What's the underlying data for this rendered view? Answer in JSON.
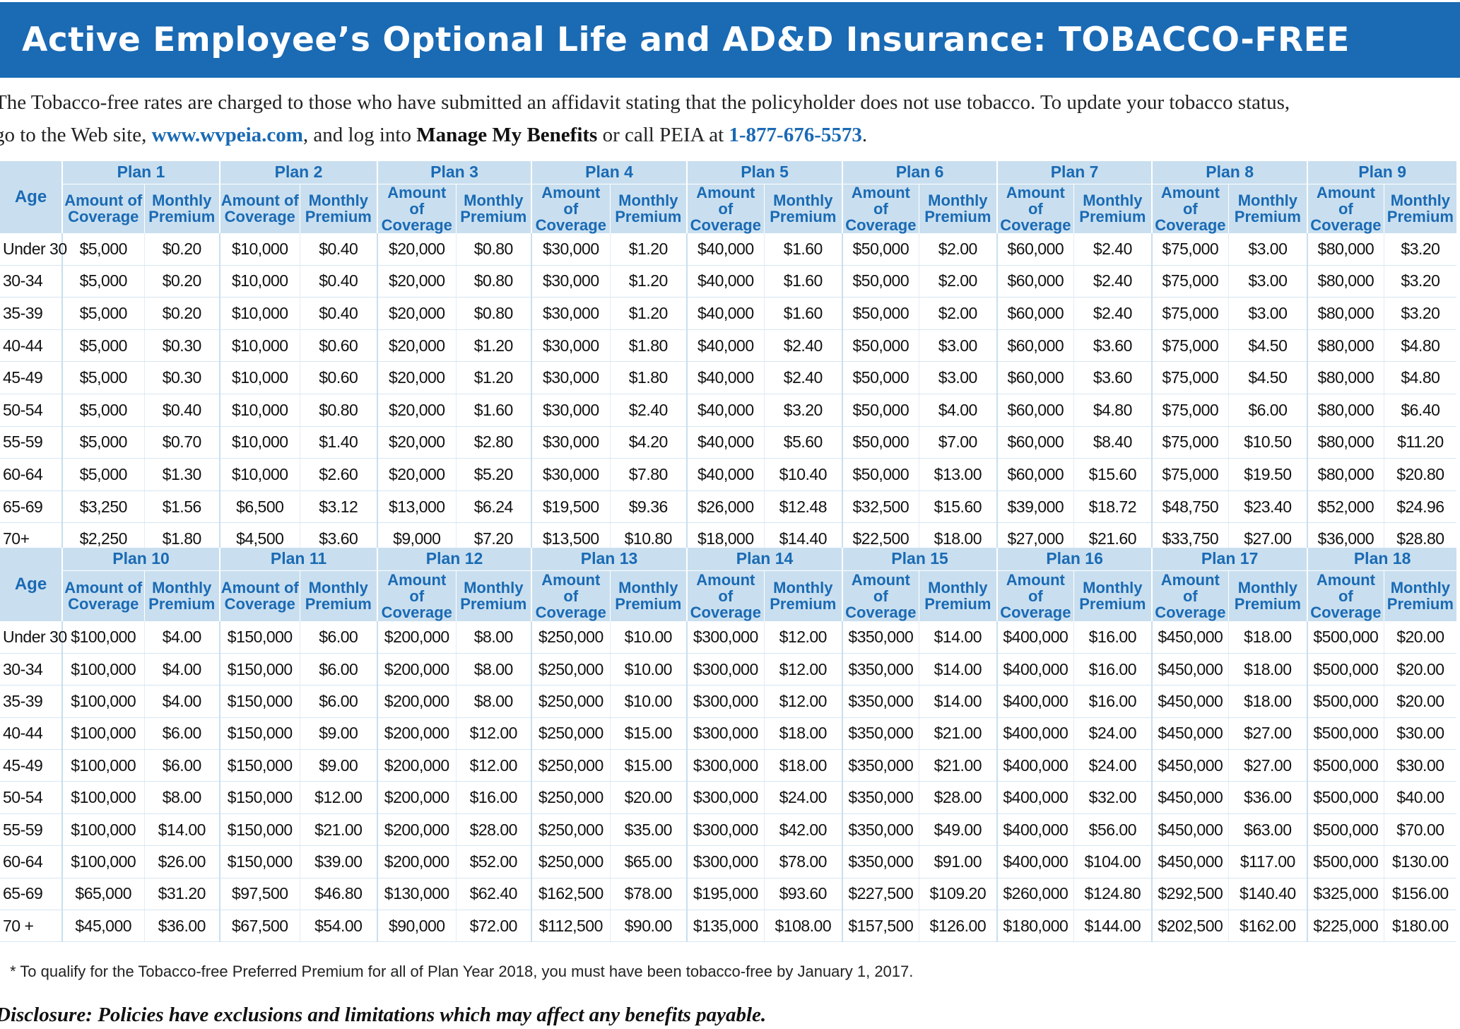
{
  "title": "Active Employee’s Optional Life and AD&D Insurance: TOBACCO-FREE",
  "intro": {
    "line1": "The Tobacco-free rates are charged to those who have submitted an affidavit stating that the policyholder does not use tobacco. To update your tobacco status,",
    "line2_a": "go to the Web site, ",
    "website": "www.wvpeia.com",
    "line2_b": ", and log into ",
    "manage": "Manage My Benefits",
    "line2_c": " or call PEIA at ",
    "phone": "1-877-676-5573",
    "line2_d": "."
  },
  "labels": {
    "age": "Age",
    "amount": "Amount of Coverage",
    "premium": "Monthly Premium"
  },
  "ages": [
    "Under 30",
    "30-34",
    "35-39",
    "40-44",
    "45-49",
    "50-54",
    "55-59",
    "60-64",
    "65-69",
    "70+"
  ],
  "ages2": [
    "Under 30",
    "30-34",
    "35-39",
    "40-44",
    "45-49",
    "50-54",
    "55-59",
    "60-64",
    "65-69",
    "70 +"
  ],
  "plans1": [
    {
      "name": "Plan 1",
      "coverage": [
        "$5,000",
        "$5,000",
        "$5,000",
        "$5,000",
        "$5,000",
        "$5,000",
        "$5,000",
        "$5,000",
        "$3,250",
        "$2,250"
      ],
      "premium": [
        "$0.20",
        "$0.20",
        "$0.20",
        "$0.30",
        "$0.30",
        "$0.40",
        "$0.70",
        "$1.30",
        "$1.56",
        "$1.80"
      ]
    },
    {
      "name": "Plan 2",
      "coverage": [
        "$10,000",
        "$10,000",
        "$10,000",
        "$10,000",
        "$10,000",
        "$10,000",
        "$10,000",
        "$10,000",
        "$6,500",
        "$4,500"
      ],
      "premium": [
        "$0.40",
        "$0.40",
        "$0.40",
        "$0.60",
        "$0.60",
        "$0.80",
        "$1.40",
        "$2.60",
        "$3.12",
        "$3.60"
      ]
    },
    {
      "name": "Plan 3",
      "coverage": [
        "$20,000",
        "$20,000",
        "$20,000",
        "$20,000",
        "$20,000",
        "$20,000",
        "$20,000",
        "$20,000",
        "$13,000",
        "$9,000"
      ],
      "premium": [
        "$0.80",
        "$0.80",
        "$0.80",
        "$1.20",
        "$1.20",
        "$1.60",
        "$2.80",
        "$5.20",
        "$6.24",
        "$7.20"
      ]
    },
    {
      "name": "Plan 4",
      "coverage": [
        "$30,000",
        "$30,000",
        "$30,000",
        "$30,000",
        "$30,000",
        "$30,000",
        "$30,000",
        "$30,000",
        "$19,500",
        "$13,500"
      ],
      "premium": [
        "$1.20",
        "$1.20",
        "$1.20",
        "$1.80",
        "$1.80",
        "$2.40",
        "$4.20",
        "$7.80",
        "$9.36",
        "$10.80"
      ]
    },
    {
      "name": "Plan 5",
      "coverage": [
        "$40,000",
        "$40,000",
        "$40,000",
        "$40,000",
        "$40,000",
        "$40,000",
        "$40,000",
        "$40,000",
        "$26,000",
        "$18,000"
      ],
      "premium": [
        "$1.60",
        "$1.60",
        "$1.60",
        "$2.40",
        "$2.40",
        "$3.20",
        "$5.60",
        "$10.40",
        "$12.48",
        "$14.40"
      ]
    },
    {
      "name": "Plan 6",
      "coverage": [
        "$50,000",
        "$50,000",
        "$50,000",
        "$50,000",
        "$50,000",
        "$50,000",
        "$50,000",
        "$50,000",
        "$32,500",
        "$22,500"
      ],
      "premium": [
        "$2.00",
        "$2.00",
        "$2.00",
        "$3.00",
        "$3.00",
        "$4.00",
        "$7.00",
        "$13.00",
        "$15.60",
        "$18.00"
      ]
    },
    {
      "name": "Plan 7",
      "coverage": [
        "$60,000",
        "$60,000",
        "$60,000",
        "$60,000",
        "$60,000",
        "$60,000",
        "$60,000",
        "$60,000",
        "$39,000",
        "$27,000"
      ],
      "premium": [
        "$2.40",
        "$2.40",
        "$2.40",
        "$3.60",
        "$3.60",
        "$4.80",
        "$8.40",
        "$15.60",
        "$18.72",
        "$21.60"
      ]
    },
    {
      "name": "Plan 8",
      "coverage": [
        "$75,000",
        "$75,000",
        "$75,000",
        "$75,000",
        "$75,000",
        "$75,000",
        "$75,000",
        "$75,000",
        "$48,750",
        "$33,750"
      ],
      "premium": [
        "$3.00",
        "$3.00",
        "$3.00",
        "$4.50",
        "$4.50",
        "$6.00",
        "$10.50",
        "$19.50",
        "$23.40",
        "$27.00"
      ]
    },
    {
      "name": "Plan 9",
      "coverage": [
        "$80,000",
        "$80,000",
        "$80,000",
        "$80,000",
        "$80,000",
        "$80,000",
        "$80,000",
        "$80,000",
        "$52,000",
        "$36,000"
      ],
      "premium": [
        "$3.20",
        "$3.20",
        "$3.20",
        "$4.80",
        "$4.80",
        "$6.40",
        "$11.20",
        "$20.80",
        "$24.96",
        "$28.80"
      ]
    }
  ],
  "plans2": [
    {
      "name": "Plan 10",
      "coverage": [
        "$100,000",
        "$100,000",
        "$100,000",
        "$100,000",
        "$100,000",
        "$100,000",
        "$100,000",
        "$100,000",
        "$65,000",
        "$45,000"
      ],
      "premium": [
        "$4.00",
        "$4.00",
        "$4.00",
        "$6.00",
        "$6.00",
        "$8.00",
        "$14.00",
        "$26.00",
        "$31.20",
        "$36.00"
      ]
    },
    {
      "name": "Plan 11",
      "coverage": [
        "$150,000",
        "$150,000",
        "$150,000",
        "$150,000",
        "$150,000",
        "$150,000",
        "$150,000",
        "$150,000",
        "$97,500",
        "$67,500"
      ],
      "premium": [
        "$6.00",
        "$6.00",
        "$6.00",
        "$9.00",
        "$9.00",
        "$12.00",
        "$21.00",
        "$39.00",
        "$46.80",
        "$54.00"
      ]
    },
    {
      "name": "Plan 12",
      "coverage": [
        "$200,000",
        "$200,000",
        "$200,000",
        "$200,000",
        "$200,000",
        "$200,000",
        "$200,000",
        "$200,000",
        "$130,000",
        "$90,000"
      ],
      "premium": [
        "$8.00",
        "$8.00",
        "$8.00",
        "$12.00",
        "$12.00",
        "$16.00",
        "$28.00",
        "$52.00",
        "$62.40",
        "$72.00"
      ]
    },
    {
      "name": "Plan 13",
      "coverage": [
        "$250,000",
        "$250,000",
        "$250,000",
        "$250,000",
        "$250,000",
        "$250,000",
        "$250,000",
        "$250,000",
        "$162,500",
        "$112,500"
      ],
      "premium": [
        "$10.00",
        "$10.00",
        "$10.00",
        "$15.00",
        "$15.00",
        "$20.00",
        "$35.00",
        "$65.00",
        "$78.00",
        "$90.00"
      ]
    },
    {
      "name": "Plan 14",
      "coverage": [
        "$300,000",
        "$300,000",
        "$300,000",
        "$300,000",
        "$300,000",
        "$300,000",
        "$300,000",
        "$300,000",
        "$195,000",
        "$135,000"
      ],
      "premium": [
        "$12.00",
        "$12.00",
        "$12.00",
        "$18.00",
        "$18.00",
        "$24.00",
        "$42.00",
        "$78.00",
        "$93.60",
        "$108.00"
      ]
    },
    {
      "name": "Plan 15",
      "coverage": [
        "$350,000",
        "$350,000",
        "$350,000",
        "$350,000",
        "$350,000",
        "$350,000",
        "$350,000",
        "$350,000",
        "$227,500",
        "$157,500"
      ],
      "premium": [
        "$14.00",
        "$14.00",
        "$14.00",
        "$21.00",
        "$21.00",
        "$28.00",
        "$49.00",
        "$91.00",
        "$109.20",
        "$126.00"
      ]
    },
    {
      "name": "Plan 16",
      "coverage": [
        "$400,000",
        "$400,000",
        "$400,000",
        "$400,000",
        "$400,000",
        "$400,000",
        "$400,000",
        "$400,000",
        "$260,000",
        "$180,000"
      ],
      "premium": [
        "$16.00",
        "$16.00",
        "$16.00",
        "$24.00",
        "$24.00",
        "$32.00",
        "$56.00",
        "$104.00",
        "$124.80",
        "$144.00"
      ]
    },
    {
      "name": "Plan 17",
      "coverage": [
        "$450,000",
        "$450,000",
        "$450,000",
        "$450,000",
        "$450,000",
        "$450,000",
        "$450,000",
        "$450,000",
        "$292,500",
        "$202,500"
      ],
      "premium": [
        "$18.00",
        "$18.00",
        "$18.00",
        "$27.00",
        "$27.00",
        "$36.00",
        "$63.00",
        "$117.00",
        "$140.40",
        "$162.00"
      ]
    },
    {
      "name": "Plan 18",
      "coverage": [
        "$500,000",
        "$500,000",
        "$500,000",
        "$500,000",
        "$500,000",
        "$500,000",
        "$500,000",
        "$500,000",
        "$325,000",
        "$225,000"
      ],
      "premium": [
        "$20.00",
        "$20.00",
        "$20.00",
        "$30.00",
        "$30.00",
        "$40.00",
        "$70.00",
        "$130.00",
        "$156.00",
        "$180.00"
      ]
    }
  ],
  "footnote": "* To qualify for the Tobacco-free Preferred Premium for all of Plan Year 2018, you must have been tobacco-free by January 1, 2017.",
  "disclosure": "Disclosure: Policies have exclusions and limitations which may affect any benefits payable."
}
